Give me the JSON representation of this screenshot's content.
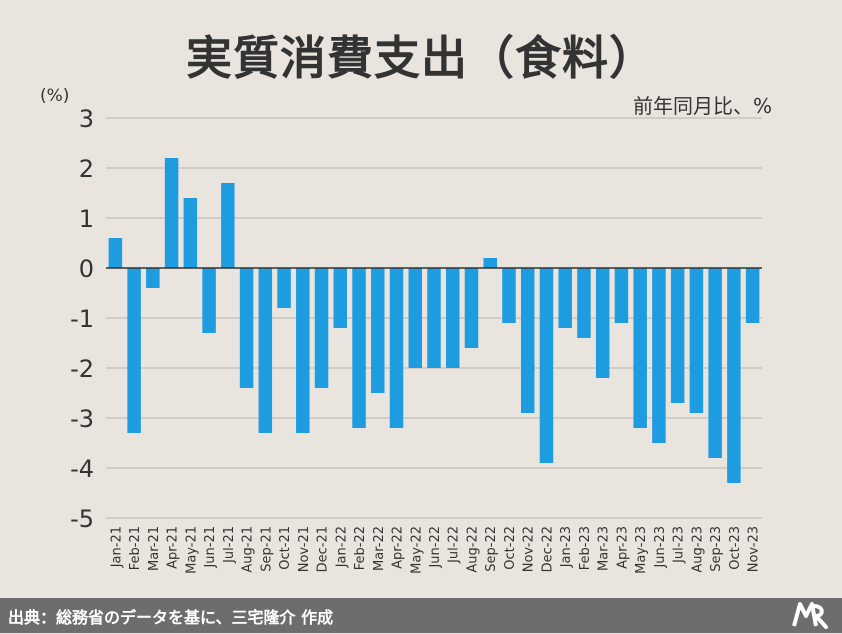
{
  "header": {
    "title": "実質消費支出（食料）",
    "unit_left": "(%)",
    "unit_right": "前年同月比、%"
  },
  "footer": {
    "source": "出典：総務省のデータを基に、三宅隆介 作成",
    "logo": "logo-icon"
  },
  "colors": {
    "bar": "#1e9ce0",
    "grid": "#b9b4ad",
    "zero_line": "#333333",
    "background": "#e9e5de"
  },
  "chart_data": {
    "type": "bar",
    "title": "実質消費支出（食料）",
    "ylabel": "(%)",
    "ylim": [
      -5,
      3
    ],
    "yticks": [
      3,
      2,
      1,
      0,
      -1,
      -2,
      -3,
      -4,
      -5
    ],
    "grid": true,
    "categories": [
      "Jan-21",
      "Feb-21",
      "Mar-21",
      "Apr-21",
      "May-21",
      "Jun-21",
      "Jul-21",
      "Aug-21",
      "Sep-21",
      "Oct-21",
      "Nov-21",
      "Dec-21",
      "Jan-22",
      "Feb-22",
      "Mar-22",
      "Apr-22",
      "May-22",
      "Jun-22",
      "Jul-22",
      "Aug-22",
      "Sep-22",
      "Oct-22",
      "Nov-22",
      "Dec-22",
      "Jan-23",
      "Feb-23",
      "Mar-23",
      "Apr-23",
      "May-23",
      "Jun-23",
      "Jul-23",
      "Aug-23",
      "Sep-23",
      "Oct-23",
      "Nov-23"
    ],
    "values": [
      0.6,
      -3.3,
      -0.4,
      2.2,
      1.4,
      -1.3,
      1.7,
      -2.4,
      -3.3,
      -0.8,
      -3.3,
      -2.4,
      -1.2,
      -3.2,
      -2.5,
      -3.2,
      -2.0,
      -2.0,
      -2.0,
      -1.6,
      0.2,
      -1.1,
      -2.9,
      -3.9,
      -1.2,
      -1.4,
      -2.2,
      -1.1,
      -3.2,
      -3.5,
      -2.7,
      -2.9,
      -3.8,
      -4.3,
      -1.1
    ]
  }
}
